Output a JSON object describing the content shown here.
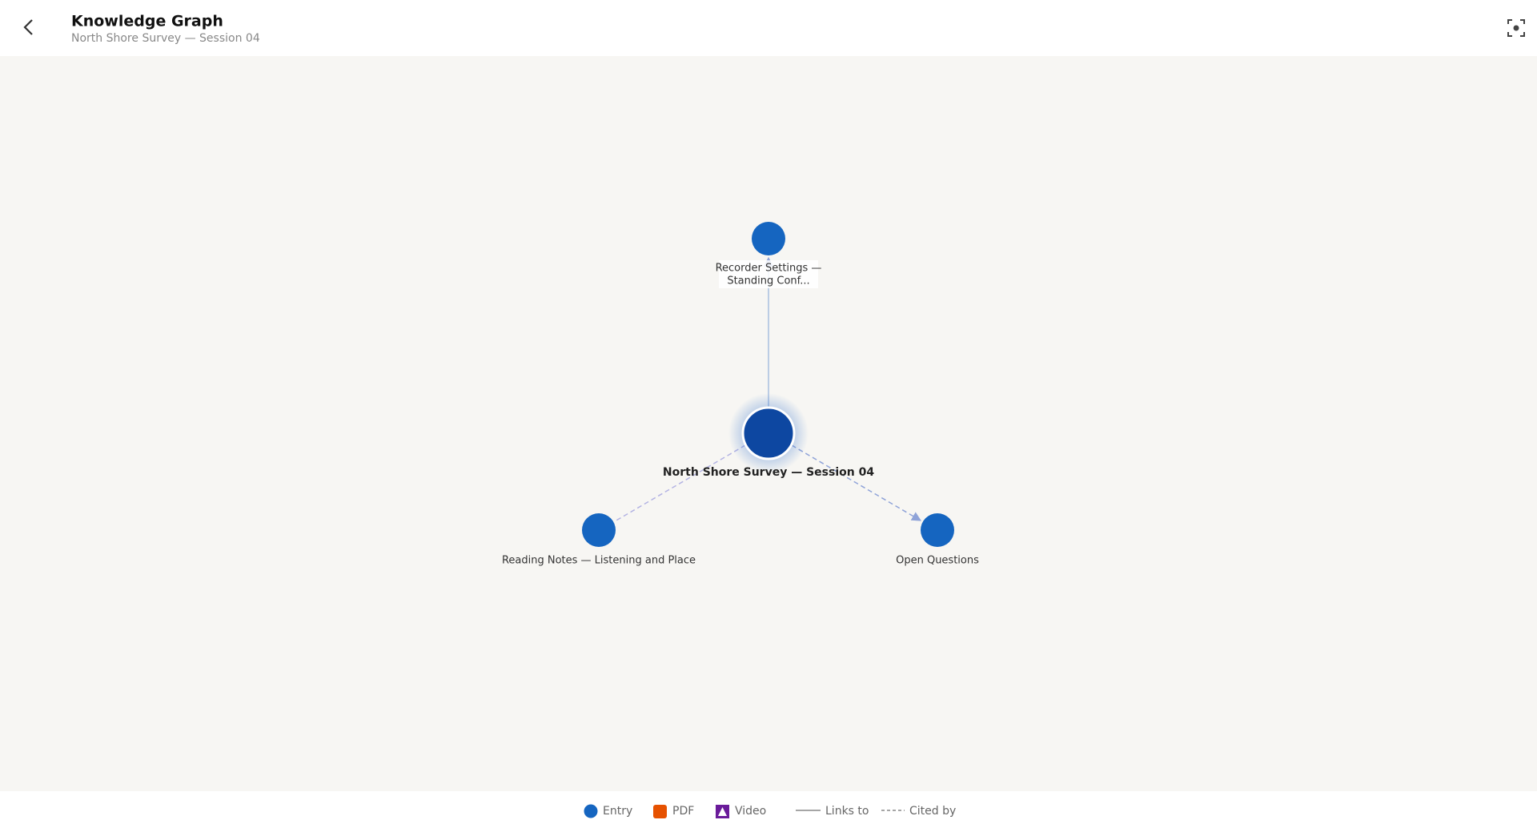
{
  "header": {
    "title": "Knowledge Graph",
    "subtitle": "North Shore Survey — Session 04"
  },
  "nodes": [
    {
      "label": "North Shore Survey — Session 04"
    },
    {
      "label": [
        "Recorder Settings —",
        "Standing Conf..."
      ]
    },
    {
      "label": "Reading Notes — Listening and Place"
    },
    {
      "label": "Open Questions"
    }
  ],
  "legend": [
    "Entry",
    "PDF",
    "Video",
    "Links to",
    "Cited by"
  ]
}
